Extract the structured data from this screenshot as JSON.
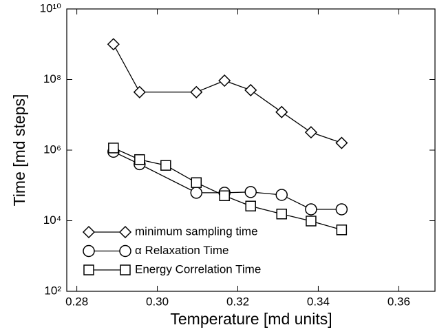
{
  "chart_data": {
    "type": "line",
    "xlabel": "Temperature [md units]",
    "ylabel": "Time [md steps]",
    "log_y": true,
    "xlim": [
      0.2775,
      0.369
    ],
    "xticks": [
      {
        "value": 0.28,
        "label": "0.28"
      },
      {
        "value": 0.3,
        "label": "0.30"
      },
      0.32,
      0.34,
      0.36
    ],
    "ylim": [
      100,
      10000000000
    ],
    "yticks": [
      {
        "value": 100,
        "label": "10²"
      },
      {
        "value": 10000,
        "label": "10⁴"
      },
      {
        "value": 1000000,
        "label": "10⁶"
      },
      {
        "value": 100000000,
        "label": "10⁸"
      },
      {
        "value": 10000000000,
        "label": "10¹⁰"
      }
    ],
    "legend": "lower left",
    "series": [
      {
        "name": "minimum sampling time",
        "marker": "diamond",
        "color": "#000000",
        "x": [
          0.2891,
          0.2956,
          0.3097,
          0.3167,
          0.3232,
          0.3309,
          0.3382,
          0.3458
        ],
        "values": [
          1000000000,
          44000000,
          44000000,
          93000000,
          50000000,
          12000000,
          3200000,
          1600000
        ]
      },
      {
        "name": "α Relaxation Time",
        "marker": "circle",
        "color": "#000000",
        "x": [
          0.2891,
          0.2956,
          0.3097,
          0.3167,
          0.3232,
          0.3309,
          0.3382,
          0.3458
        ],
        "values": [
          900000,
          400000,
          62000,
          62000,
          65000,
          54000,
          21000,
          21000
        ]
      },
      {
        "name": "Energy Correlation Time",
        "marker": "square",
        "color": "#000000",
        "x": [
          0.2891,
          0.2956,
          0.3021,
          0.3097,
          0.3167,
          0.3232,
          0.3309,
          0.3382,
          0.3458
        ],
        "values": [
          1150000,
          540000,
          370000,
          120000,
          51000,
          26000,
          15500,
          9800,
          5500
        ]
      }
    ]
  }
}
